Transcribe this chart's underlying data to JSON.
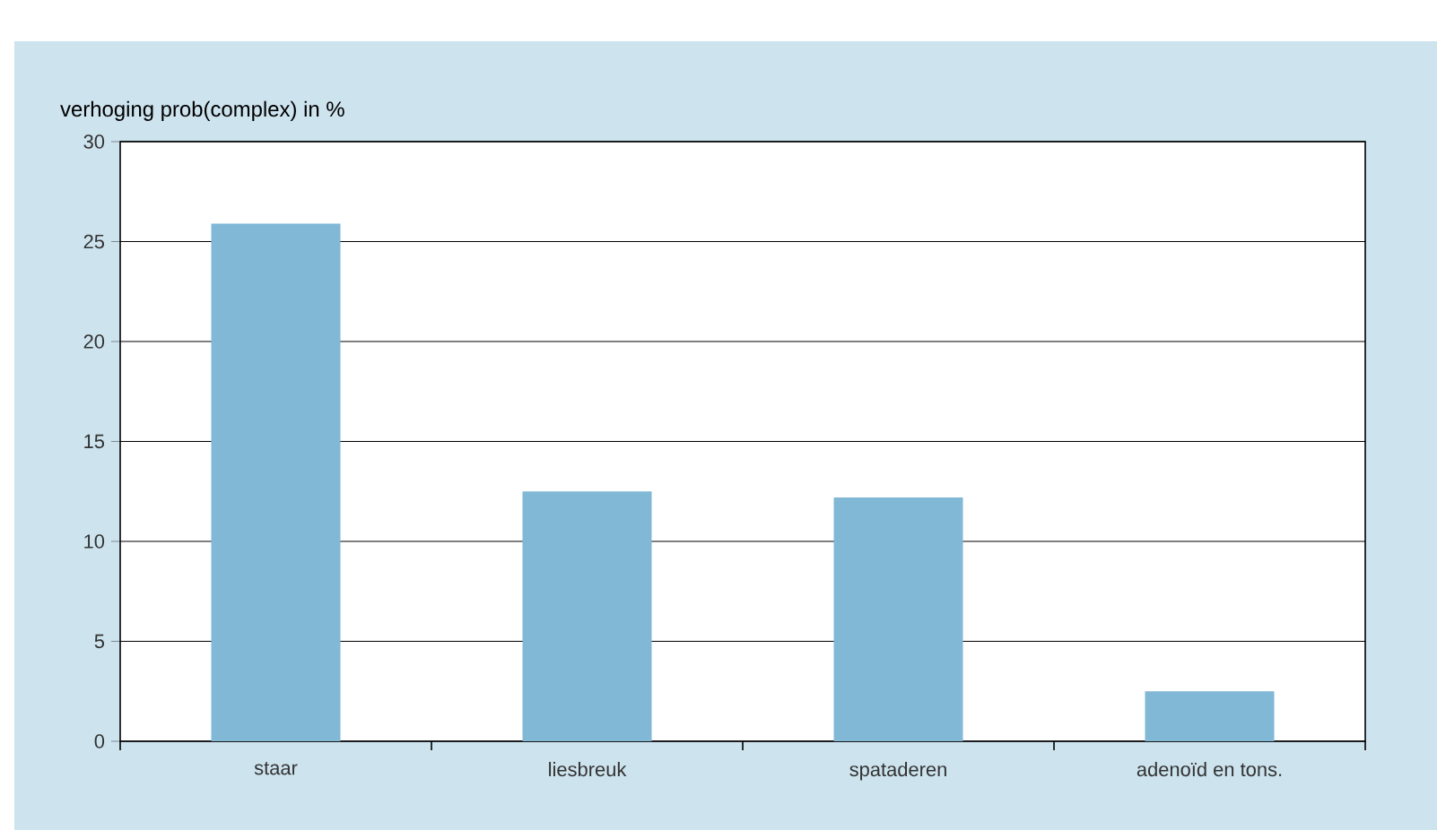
{
  "chart_data": {
    "type": "bar",
    "ylabel": "verhoging prob(complex) in %",
    "categories": [
      "staar",
      "liesbreuk",
      "spataderen",
      "adenoïd en tons."
    ],
    "values": [
      25.9,
      12.5,
      12.2,
      2.5
    ],
    "color": "#80b8d6",
    "ylim": [
      0,
      30
    ],
    "yticks": [
      0,
      5,
      10,
      15,
      20,
      25,
      30
    ],
    "grid": "y"
  }
}
